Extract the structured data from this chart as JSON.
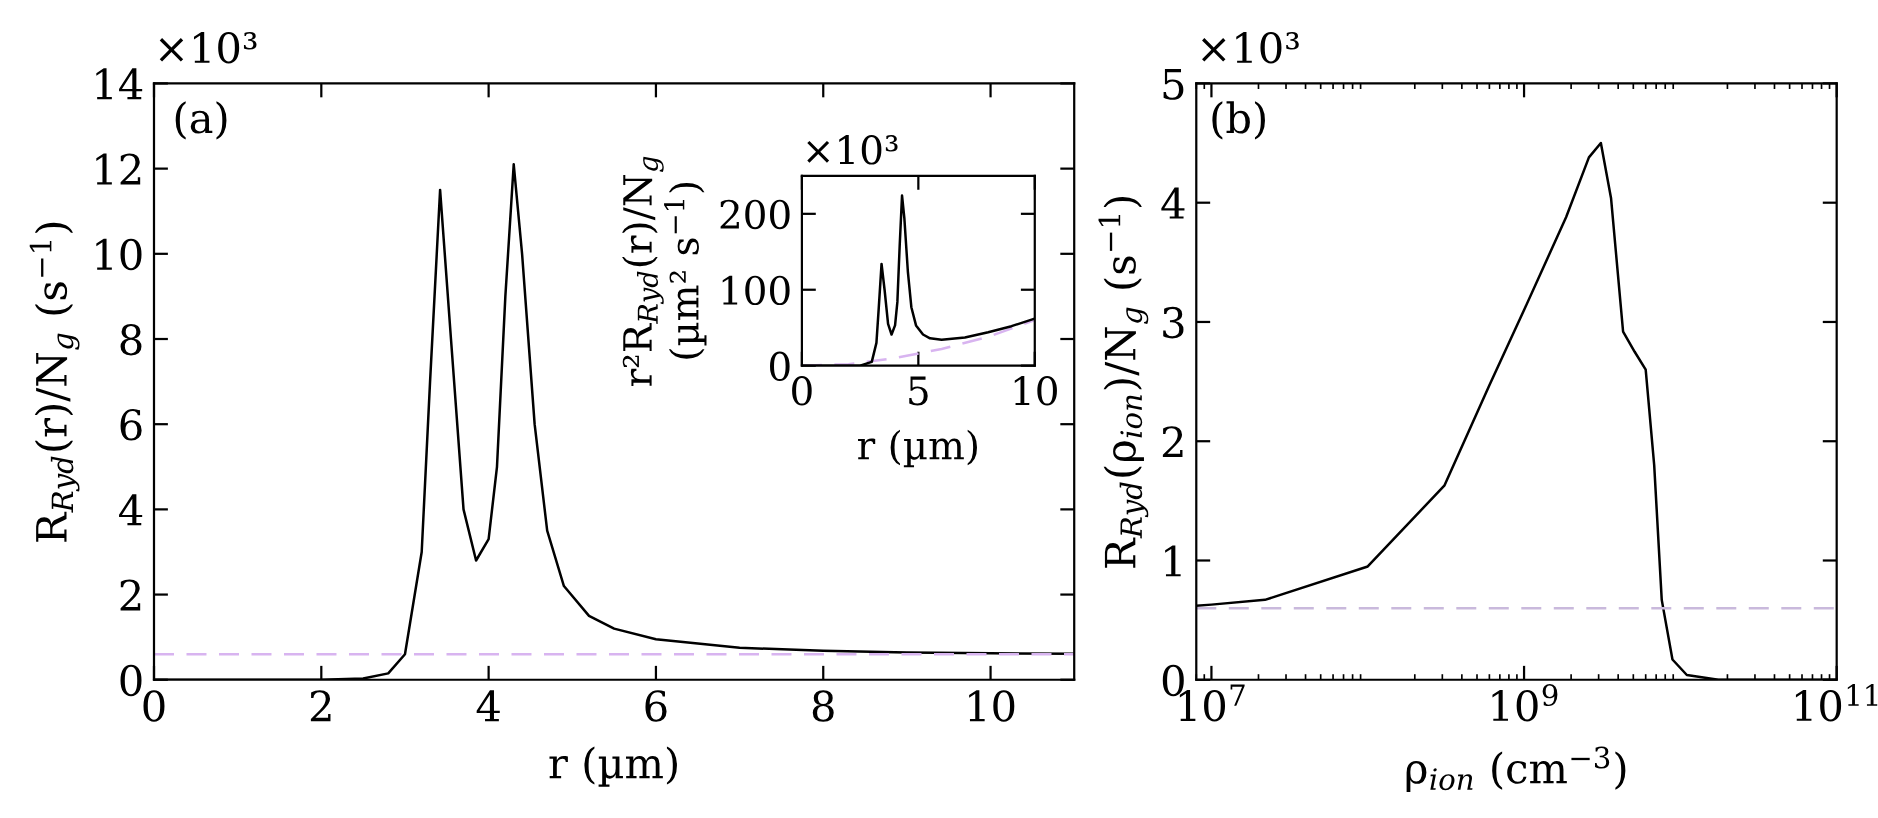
{
  "chart_data": [
    {
      "type": "line",
      "xlabel": "r (µm)",
      "ylabel": "R$_{Ryd}$(r)/N$_{g}$ (s$^{−1}$)",
      "annotations": [
        "(a)",
        "×10³"
      ],
      "xlim": [
        0,
        11
      ],
      "ylim": [
        0,
        14
      ],
      "xticks": [
        0,
        2,
        4,
        6,
        8,
        10
      ],
      "yticks": [
        0,
        2,
        4,
        6,
        8,
        10,
        12,
        14
      ],
      "grid": false,
      "legend": false,
      "series": [
        {
          "color": "#000000",
          "line_style": "solid",
          "x": [
            0,
            2,
            2.5,
            2.8,
            3.0,
            3.2,
            3.3,
            3.42,
            3.55,
            3.7,
            3.85,
            4.0,
            4.1,
            4.2,
            4.3,
            4.4,
            4.55,
            4.7,
            4.9,
            5.2,
            5.5,
            6,
            7,
            8,
            9,
            10,
            11
          ],
          "values": [
            0,
            0,
            0.03,
            0.15,
            0.6,
            3,
            7,
            11.5,
            8,
            4,
            2.8,
            3.3,
            5,
            9,
            12.1,
            10,
            6,
            3.5,
            2.2,
            1.5,
            1.2,
            0.95,
            0.75,
            0.68,
            0.64,
            0.62,
            0.61
          ]
        }
      ],
      "ref_lines": [
        {
          "axis": "y",
          "value": 0.6,
          "color": "#d8b4f0",
          "line_style": "dashed"
        }
      ]
    },
    {
      "type": "line",
      "xlabel": "r (µm)",
      "ylabel": "r²R$_{Ryd}$(r)/N$_{g}$\n(µm² s$^{−1}$)",
      "annotations": [
        "×10³"
      ],
      "xlim": [
        0,
        10
      ],
      "ylim": [
        0,
        250
      ],
      "xticks": [
        0,
        5,
        10
      ],
      "yticks": [
        0,
        100,
        200
      ],
      "grid": false,
      "legend": false,
      "series": [
        {
          "color": "#d8b4f0",
          "line_style": "dashed",
          "x": [
            0,
            2,
            4,
            6,
            8,
            10
          ],
          "values": [
            0,
            2,
            10,
            22,
            38,
            60
          ]
        },
        {
          "color": "#000000",
          "line_style": "solid",
          "x": [
            0,
            2.5,
            3.0,
            3.2,
            3.3,
            3.42,
            3.55,
            3.7,
            3.85,
            4.0,
            4.1,
            4.2,
            4.3,
            4.4,
            4.55,
            4.7,
            4.9,
            5.2,
            5.5,
            6,
            7,
            8,
            9,
            10
          ],
          "values": [
            0,
            0,
            5,
            30,
            76,
            134,
            100,
            55,
            41,
            53,
            84,
            159,
            224,
            194,
            124,
            77,
            53,
            41,
            36,
            34,
            37,
            44,
            52,
            62
          ]
        }
      ]
    },
    {
      "type": "line",
      "xlabel": "ρ$_{ion}$ (cm$^{−3}$)",
      "ylabel": "R$_{Ryd}$(ρ$_{ion}$)/N$_{g}$ (s$^{−1}$)",
      "annotations": [
        "(b)",
        "×10³"
      ],
      "log": "x",
      "xlim": [
        8000000,
        100000000000
      ],
      "ylim": [
        0,
        5
      ],
      "xticks": [
        {
          "value": 10000000,
          "label": "10$^{7}$"
        },
        {
          "value": 1000000000,
          "label": "10$^{9}$"
        },
        {
          "value": 100000000000,
          "label": "10$^{11}$"
        }
      ],
      "yticks": [
        0,
        1,
        2,
        3,
        4,
        5
      ],
      "grid": false,
      "legend": false,
      "series": [
        {
          "color": "#000000",
          "line_style": "solid",
          "x": [
            8000000,
            10000000,
            22000000,
            100000000,
            310000000,
            600000000,
            1000000000,
            1860000000,
            2600000000,
            3100000000,
            3600000000,
            4300000000,
            5100000000,
            6000000000,
            6800000000,
            7600000000,
            8900000000,
            11000000000,
            17500000000,
            100000000000
          ],
          "values": [
            0.62,
            0.63,
            0.67,
            0.95,
            1.63,
            2.47,
            3.1,
            3.88,
            4.38,
            4.5,
            4.04,
            2.92,
            2.75,
            2.6,
            1.8,
            0.67,
            0.17,
            0.04,
            0,
            0
          ]
        }
      ],
      "ref_lines": [
        {
          "axis": "y",
          "value": 0.6,
          "color": "#c9b9dc",
          "line_style": "dashed"
        }
      ]
    }
  ]
}
